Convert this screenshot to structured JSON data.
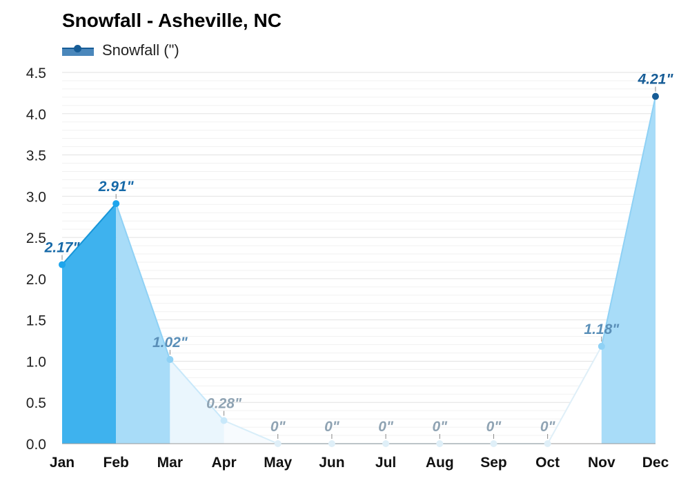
{
  "chart_data": {
    "type": "area",
    "title": "Snowfall - Asheville, NC",
    "categories": [
      "Jan",
      "Feb",
      "Mar",
      "Apr",
      "May",
      "Jun",
      "Jul",
      "Aug",
      "Sep",
      "Oct",
      "Nov",
      "Dec"
    ],
    "series": [
      {
        "name": "Snowfall (\")",
        "values": [
          2.17,
          2.91,
          1.02,
          0.28,
          0,
          0,
          0,
          0,
          0,
          0,
          1.18,
          4.21
        ],
        "labels": [
          "2.17\"",
          "2.91\"",
          "1.02\"",
          "0.28\"",
          "0\"",
          "0\"",
          "0\"",
          "0\"",
          "0\"",
          "0\"",
          "1.18\"",
          "4.21\""
        ]
      }
    ],
    "ylim": [
      0,
      4.5
    ],
    "yticks": [
      0,
      0.5,
      1,
      1.5,
      2,
      2.5,
      3,
      3.5,
      4,
      4.5
    ],
    "ytick_labels": [
      "0.0",
      "0.5",
      "1.0",
      "1.5",
      "2.0",
      "2.5",
      "3.0",
      "3.5",
      "4.0",
      "4.5"
    ],
    "grid": true,
    "legend_position": "top-left",
    "colors": {
      "segments": [
        "#3eb2ee",
        "#a8dcf8",
        "#eaf6fd",
        "#f7fbfe",
        "#ffffff",
        "#ffffff",
        "#ffffff",
        "#ffffff",
        "#ffffff",
        "#ffffff",
        "#a8dcf8",
        "#4a87bb"
      ],
      "lines": [
        "#1896d8",
        "#8fd1f5",
        "#c8e8fa",
        "#d8eef9",
        "#dfeff8",
        "#dfeff8",
        "#dfeff8",
        "#dfeff8",
        "#dfeff8",
        "#dfeff8",
        "#8fd1f5",
        "#165c96"
      ],
      "points": [
        "#1ea5ec",
        "#1ea5ec",
        "#8fd1f5",
        "#c8e8fa",
        "#dfeff8",
        "#dfeff8",
        "#dfeff8",
        "#dfeff8",
        "#dfeff8",
        "#dfeff8",
        "#8fd1f5",
        "#165c96"
      ],
      "labels": [
        "#1669a8",
        "#1669a8",
        "#5a8fb8",
        "#8fa3b3",
        "#8fa3b3",
        "#8fa3b3",
        "#8fa3b3",
        "#8fa3b3",
        "#8fa3b3",
        "#8fa3b3",
        "#5a8fb8",
        "#165c96"
      ],
      "legend_fill": "#4a87bb",
      "legend_point": "#165c96",
      "grid_major": "#e2e2e2",
      "grid_minor": "#f1f1f1",
      "axis": "#999999"
    }
  }
}
